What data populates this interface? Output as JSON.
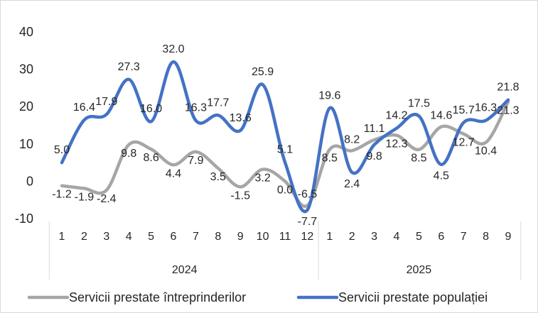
{
  "chart_data": {
    "type": "line",
    "ylim": [
      -10,
      40
    ],
    "yticks": [
      40,
      30,
      20,
      10,
      0,
      -10
    ],
    "grid": false,
    "legend_position": "bottom",
    "categories": [
      "1",
      "2",
      "3",
      "4",
      "5",
      "6",
      "7",
      "8",
      "9",
      "10",
      "11",
      "12",
      "1",
      "2",
      "3",
      "4",
      "5",
      "6",
      "7",
      "8",
      "9"
    ],
    "groups": [
      {
        "label": "2024",
        "count": 12
      },
      {
        "label": "2025",
        "count": 9
      }
    ],
    "series": [
      {
        "name": "Servicii prestate întreprinderilor",
        "color": "#a6a6a6",
        "values": [
          -1.2,
          -1.9,
          -2.4,
          9.8,
          8.6,
          4.4,
          7.9,
          3.5,
          -1.5,
          3.2,
          0.0,
          -6.5,
          8.5,
          8.2,
          11.1,
          12.3,
          8.5,
          14.6,
          12.7,
          10.4,
          21.3
        ],
        "labels": [
          "-1.2",
          "-1.9",
          "-2.4",
          "9.8",
          "8.6",
          "4.4",
          "7.9",
          "3.5",
          "-1.5",
          "3.2",
          "0.0",
          "-6.5",
          "8.5",
          "8.2",
          "11.1",
          "12.3",
          "8.5",
          "14.6",
          "12.7",
          "10.4",
          "21.3"
        ]
      },
      {
        "name": "Servicii prestate populației",
        "color": "#4472c4",
        "values": [
          5.0,
          16.4,
          17.9,
          27.3,
          16.0,
          32.0,
          16.3,
          17.7,
          13.6,
          25.9,
          5.1,
          -7.7,
          19.6,
          2.4,
          9.8,
          14.2,
          17.5,
          4.5,
          15.7,
          16.3,
          21.8
        ],
        "labels": [
          "5.0",
          "16.4",
          "17.9",
          "27.3",
          "16.0",
          "32.0",
          "16.3",
          "17.7",
          "13.6",
          "25.9",
          "5.1",
          "-7.7",
          "19.6",
          "2.4",
          "9.8",
          "14.2",
          "17.5",
          "4.5",
          "15.7",
          "16.3",
          "21.8"
        ]
      }
    ]
  }
}
